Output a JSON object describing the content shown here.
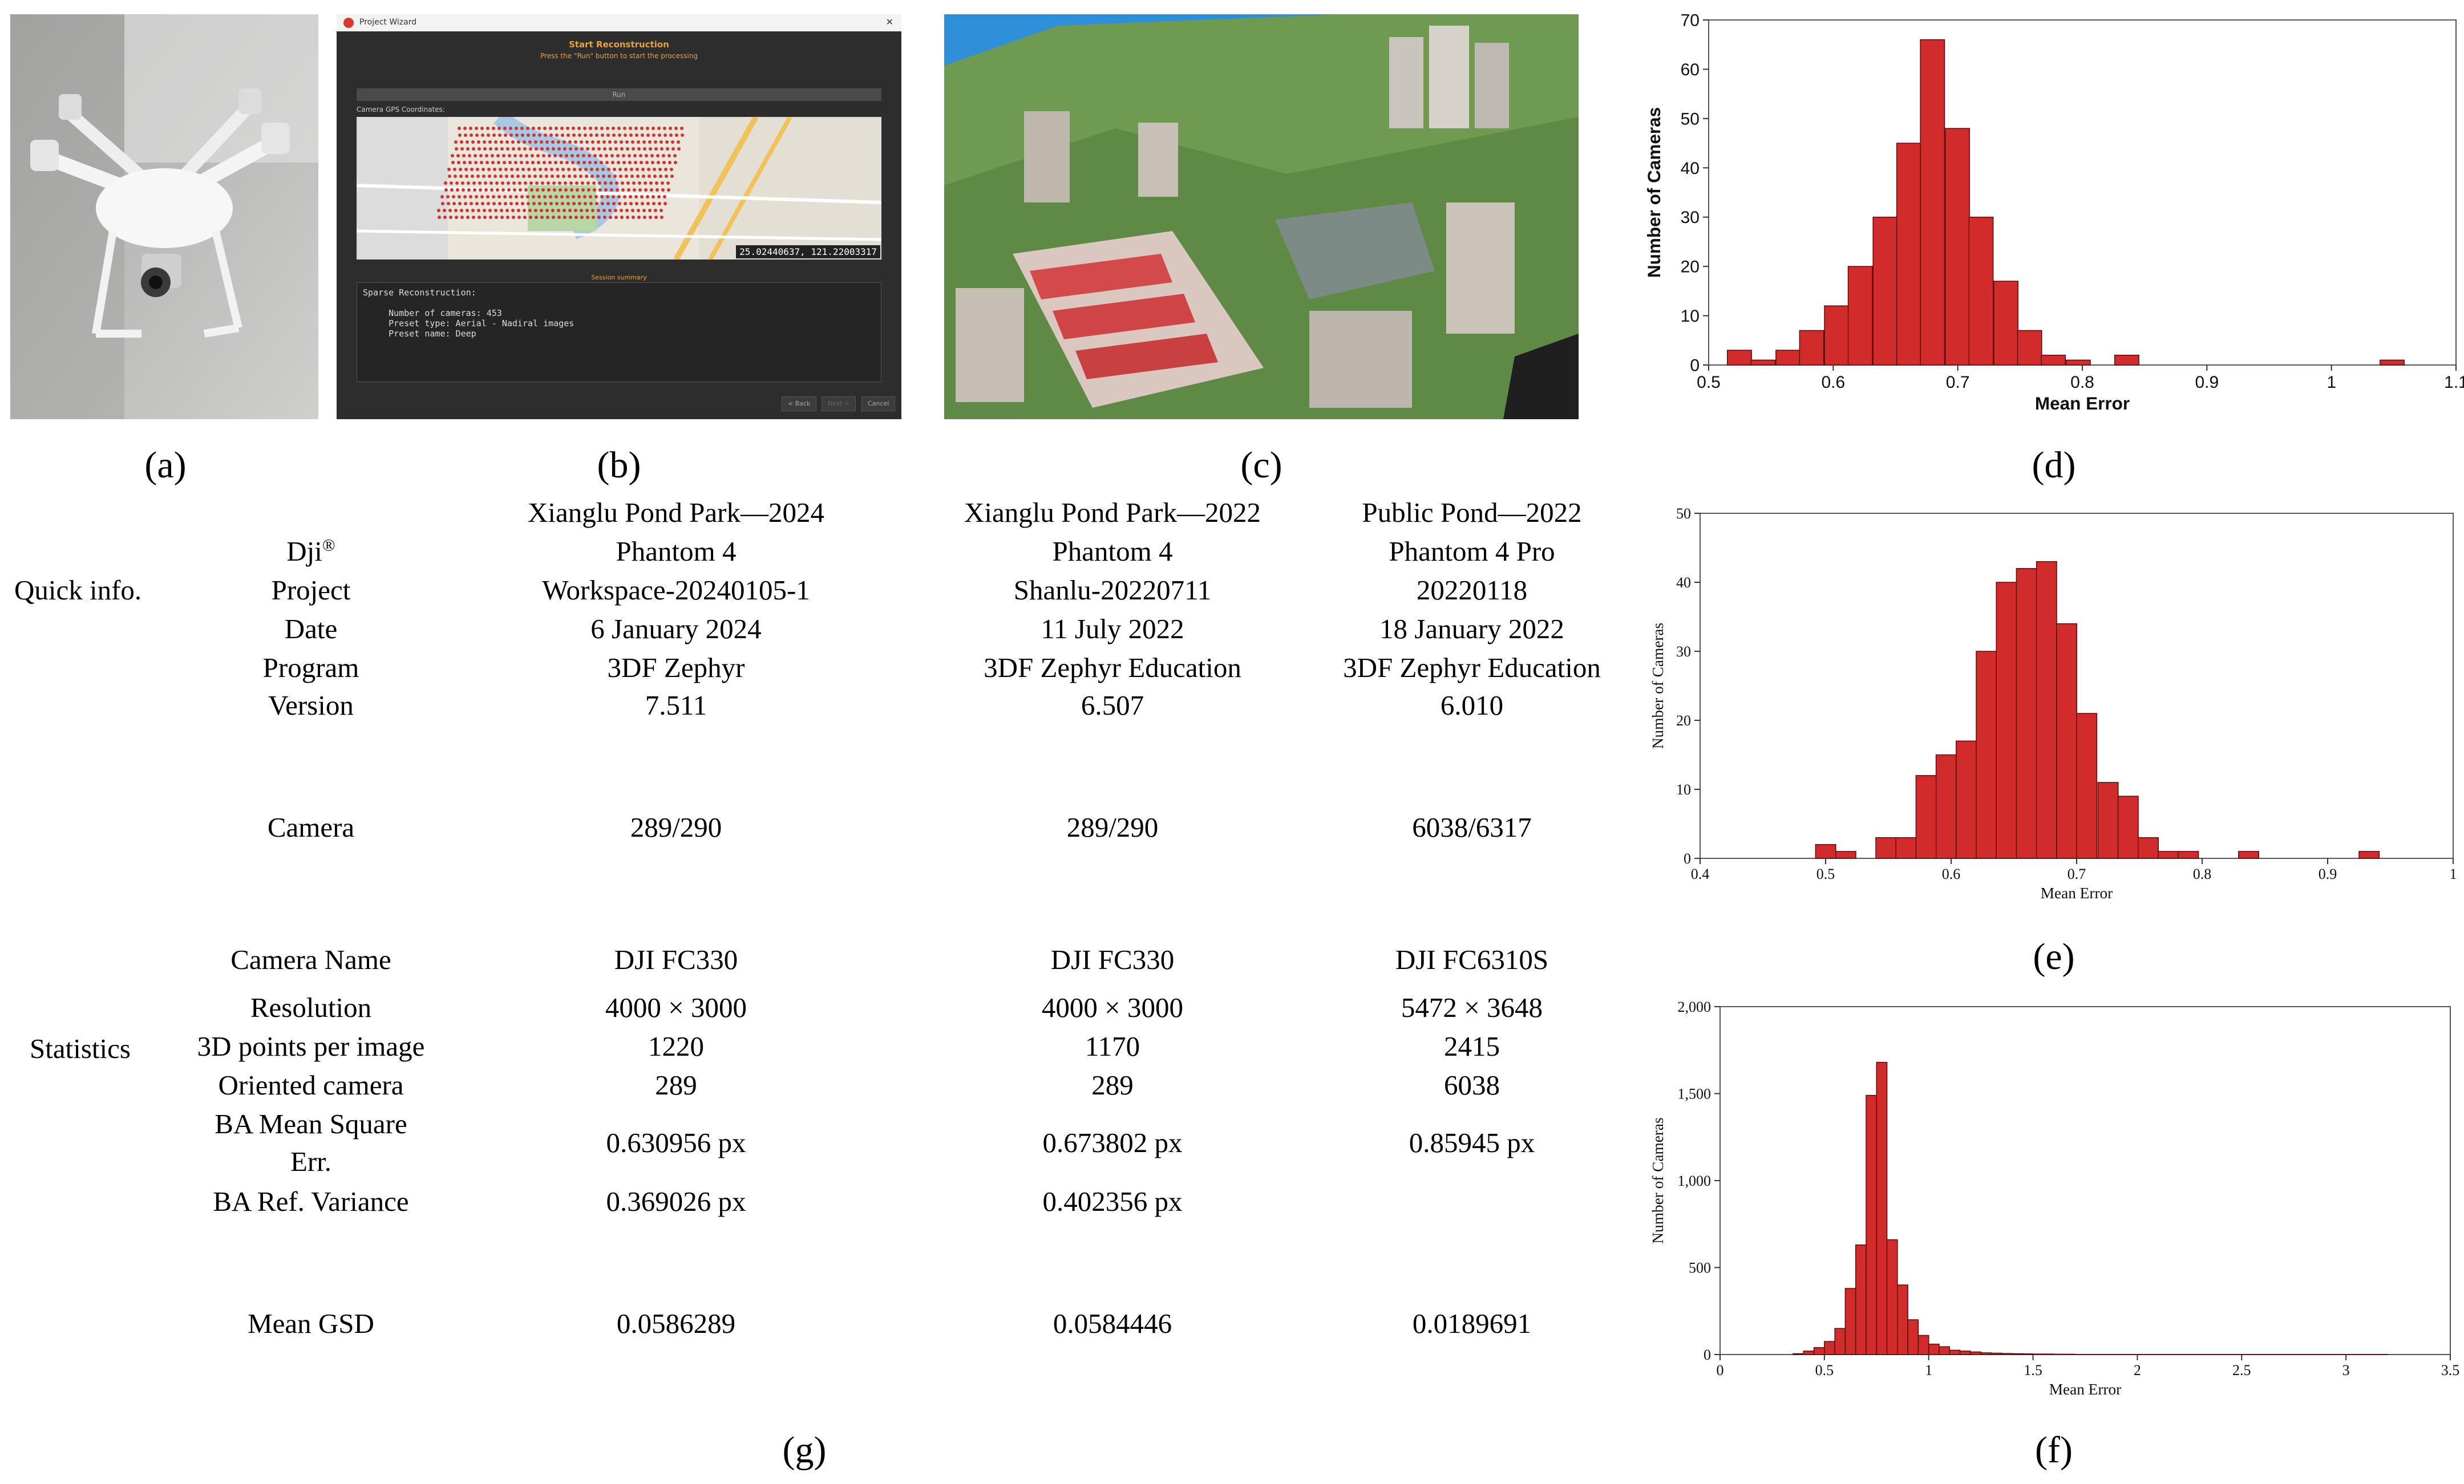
{
  "panel_labels": {
    "a": "(a)",
    "b": "(b)",
    "c": "(c)",
    "d": "(d)",
    "e": "(e)",
    "f": "(f)",
    "g": "(g)"
  },
  "wizard": {
    "window_title": "Project Wizard",
    "heading": "Start Reconstruction",
    "subheading": "Press the \"Run\" button to start the processing",
    "run_button": "Run",
    "gps_label": "Camera GPS Coordinates:",
    "coordinate_readout": "25.02440637, 121.22003317",
    "session_summary": "Session summary",
    "log_text": "Sparse Reconstruction:\n\n     Number of cameras: 453\n     Preset type: Aerial - Nadiral images\n     Preset name: Deep",
    "back_button": "< Back",
    "next_button": "Next >",
    "cancel_button": "Cancel"
  },
  "table": {
    "group_quick": "Quick info.",
    "group_stats": "Statistics",
    "columns": [
      {
        "site": "Xianglu Pond Park—2024",
        "drone": "Phantom 4",
        "project": "Workspace-20240105-1",
        "date": "6 January 2024",
        "program": "3DF Zephyr",
        "version": "7.511",
        "camera": "289/290",
        "camera_name": "DJI FC330",
        "resolution": "4000 × 3000",
        "points": "1220",
        "oriented": "289",
        "ba_mse": "0.630956 px",
        "ba_var": "0.369026 px",
        "gsd": "0.0586289"
      },
      {
        "site": "Xianglu Pond Park—2022",
        "drone": "Phantom 4",
        "project": "Shanlu-20220711",
        "date": "11 July 2022",
        "program": "3DF Zephyr Education",
        "version": "6.507",
        "camera": "289/290",
        "camera_name": "DJI FC330",
        "resolution": "4000 × 3000",
        "points": "1170",
        "oriented": "289",
        "ba_mse": "0.673802 px",
        "ba_var": "0.402356 px",
        "gsd": "0.0584446"
      },
      {
        "site": "Public Pond—2022",
        "drone": "Phantom 4 Pro",
        "project": "20220118",
        "date": "18 January 2022",
        "program": "3DF Zephyr Education",
        "version": "6.010",
        "camera": "6038/6317",
        "camera_name": "DJI FC6310S",
        "resolution": "5472 × 3648",
        "points": "2415",
        "oriented": "6038",
        "ba_mse": "0.85945 px",
        "ba_var": "",
        "gsd": "0.0189691"
      }
    ],
    "row_labels": {
      "drone_brand": "Dji",
      "drone_brand_sup": "®",
      "project": "Project",
      "date": "Date",
      "program": "Program",
      "version": "Version",
      "camera": "Camera",
      "camera_name": "Camera Name",
      "resolution": "Resolution",
      "points": "3D points per image",
      "oriented": "Oriented camera",
      "ba_mse_1": "BA Mean Square",
      "ba_mse_2": "Err.",
      "ba_var": "BA Ref. Variance",
      "gsd": "Mean GSD"
    }
  },
  "chart_data": [
    {
      "type": "bar",
      "panel": "(d)",
      "xlabel": "Mean Error",
      "ylabel": "Number of Cameras",
      "xlim": [
        0.5,
        1.1
      ],
      "ylim": [
        0,
        70
      ],
      "xticks": [
        "0.5",
        "0.6",
        "0.7",
        "0.8",
        "0.9",
        "1",
        "1.1"
      ],
      "yticks": [
        "0",
        "10",
        "20",
        "30",
        "40",
        "50",
        "60",
        "70"
      ],
      "bin_width": 0.0194,
      "bins": [
        0.515,
        0.534,
        0.554,
        0.573,
        0.593,
        0.612,
        0.632,
        0.651,
        0.67,
        0.69,
        0.709,
        0.729,
        0.748,
        0.767,
        0.787,
        0.806,
        0.826,
        0.845,
        0.865,
        0.884,
        0.903,
        0.923,
        0.942,
        0.962,
        0.981,
        1.001,
        1.02,
        1.039
      ],
      "values": [
        3,
        1,
        3,
        7,
        12,
        20,
        30,
        45,
        66,
        48,
        30,
        17,
        7,
        2,
        1,
        0,
        2,
        0,
        0,
        0,
        0,
        0,
        0,
        0,
        0,
        0,
        0,
        1
      ],
      "color": "#d22b2b"
    },
    {
      "type": "bar",
      "panel": "(e)",
      "xlabel": "Mean Error",
      "ylabel": "Number of Cameras",
      "xlim": [
        0.4,
        1.0
      ],
      "ylim": [
        0,
        50
      ],
      "xticks": [
        "0.4",
        "0.5",
        "0.6",
        "0.7",
        "0.8",
        "0.9",
        "1"
      ],
      "yticks": [
        "0",
        "10",
        "20",
        "30",
        "40",
        "50"
      ],
      "bin_width": 0.0161,
      "bins": [
        0.492,
        0.508,
        0.524,
        0.54,
        0.556,
        0.572,
        0.588,
        0.604,
        0.62,
        0.636,
        0.652,
        0.668,
        0.684,
        0.7,
        0.717,
        0.733,
        0.749,
        0.765,
        0.781,
        0.797,
        0.813,
        0.829,
        0.845,
        0.861,
        0.877,
        0.893,
        0.909,
        0.925
      ],
      "values": [
        2,
        1,
        0,
        3,
        3,
        12,
        15,
        17,
        30,
        40,
        42,
        43,
        34,
        21,
        11,
        9,
        3,
        1,
        1,
        0,
        0,
        1,
        0,
        0,
        0,
        0,
        0,
        1
      ],
      "color": "#d22b2b"
    },
    {
      "type": "bar",
      "panel": "(f)",
      "xlabel": "Mean Error",
      "ylabel": "Number of Cameras",
      "xlim": [
        0,
        3.5
      ],
      "ylim": [
        0,
        2000
      ],
      "xticks": [
        "0",
        "0.5",
        "1",
        "1.5",
        "2",
        "2.5",
        "3",
        "3.5"
      ],
      "yticks": [
        "0",
        "500",
        "1,000",
        "1,500",
        "2,000"
      ],
      "bin_width": 0.05,
      "bins": [
        0.35,
        0.4,
        0.45,
        0.5,
        0.55,
        0.6,
        0.65,
        0.7,
        0.75,
        0.8,
        0.85,
        0.9,
        0.95,
        1.0,
        1.05,
        1.1,
        1.15,
        1.2,
        1.25,
        1.3,
        1.35,
        1.4,
        1.45,
        1.5,
        1.55,
        1.6,
        1.65
      ],
      "values": [
        5,
        20,
        40,
        75,
        150,
        380,
        630,
        1490,
        1680,
        660,
        400,
        200,
        110,
        60,
        45,
        25,
        20,
        15,
        10,
        8,
        6,
        5,
        4,
        3,
        3,
        2,
        2
      ],
      "line_end": 3.2,
      "color": "#d22b2b"
    }
  ]
}
